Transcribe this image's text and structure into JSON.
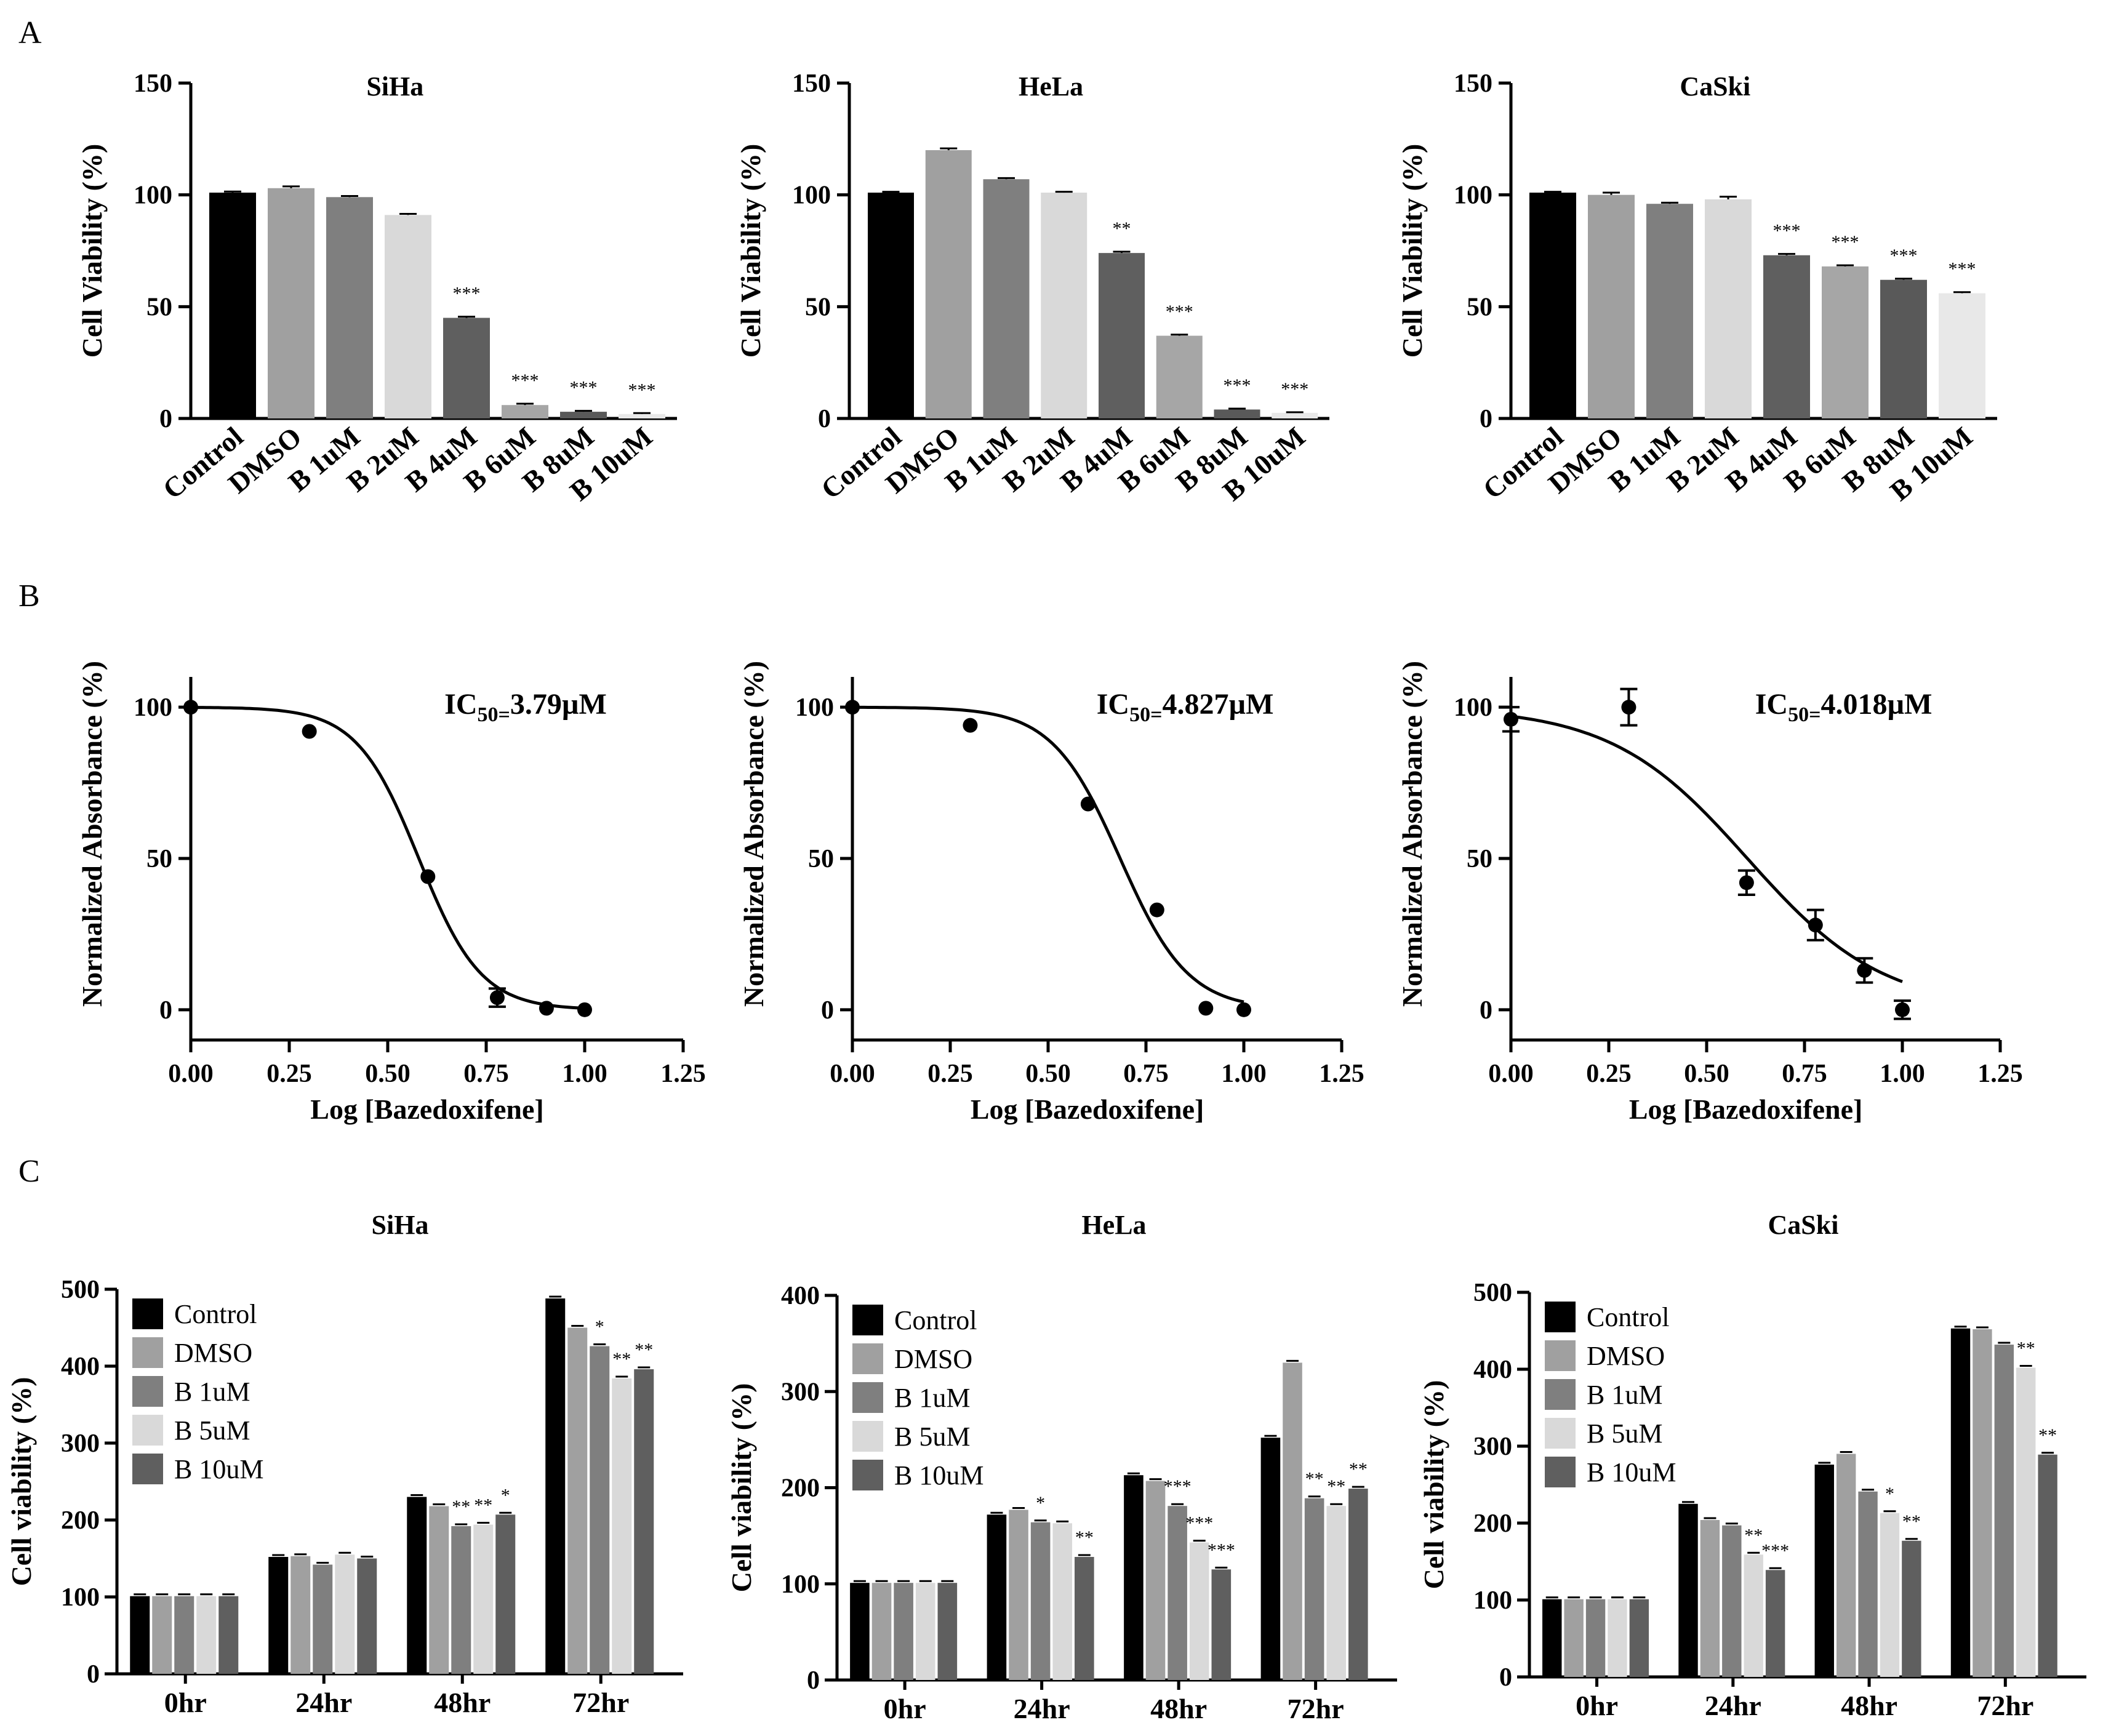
{
  "panels": {
    "A": "A",
    "B": "B",
    "C": "C"
  },
  "colors": {
    "control": "#000000",
    "dmso": "#a0a0a0",
    "b1": "#7f7f7f",
    "b2": "#d9d9d9",
    "b4": "#5f5f5f",
    "b6": "#a6a6a6",
    "b8": "#595959",
    "b10": "#e8e8e8",
    "timecourse": [
      "#000000",
      "#a0a0a0",
      "#7f7f7f",
      "#d9d9d9",
      "#5f5f5f"
    ]
  },
  "chart_data": [
    {
      "id": "A1",
      "type": "bar",
      "title": "SiHa",
      "xlabel": "",
      "ylabel": "Cell Viability (%)",
      "ylim": [
        0,
        150
      ],
      "yticks": [
        0,
        50,
        100,
        150
      ],
      "categories": [
        "Control",
        "DMSO",
        "B 1uM",
        "B 2uM",
        "B 4uM",
        "B 6uM",
        "B 8uM",
        "B 10uM"
      ],
      "values": [
        101,
        103,
        99,
        91,
        45,
        6,
        3,
        2
      ],
      "errors": [
        0.5,
        0.8,
        0.5,
        0.5,
        0.5,
        0.6,
        0.4,
        0.4
      ],
      "significance": [
        "",
        "",
        "",
        "",
        "***",
        "***",
        "***",
        "***"
      ]
    },
    {
      "id": "A2",
      "type": "bar",
      "title": "HeLa",
      "xlabel": "",
      "ylabel": "Cell Viability (%)",
      "ylim": [
        0,
        150
      ],
      "yticks": [
        0,
        50,
        100,
        150
      ],
      "categories": [
        "Control",
        "DMSO",
        "B 1uM",
        "B 2uM",
        "B 4uM",
        "B 6uM",
        "B 8uM",
        "B 10uM"
      ],
      "values": [
        101,
        120,
        107,
        101,
        74,
        37,
        4,
        2.5
      ],
      "errors": [
        0.4,
        0.8,
        0.5,
        0.4,
        0.6,
        0.5,
        0.4,
        0.3
      ],
      "significance": [
        "",
        "",
        "",
        "",
        "**",
        "***",
        "***",
        "***"
      ]
    },
    {
      "id": "A3",
      "type": "bar",
      "title": "CaSki",
      "xlabel": "",
      "ylabel": "Cell Viability (%)",
      "ylim": [
        0,
        150
      ],
      "yticks": [
        0,
        50,
        100,
        150
      ],
      "categories": [
        "Control",
        "DMSO",
        "B 1uM",
        "B 2uM",
        "B 4uM",
        "B 6uM",
        "B 8uM",
        "B 10uM"
      ],
      "values": [
        101,
        100,
        96,
        98,
        73,
        68,
        62,
        56
      ],
      "errors": [
        0.4,
        1.0,
        0.5,
        1.2,
        0.6,
        0.5,
        0.5,
        0.5
      ],
      "significance": [
        "",
        "",
        "",
        "",
        "***",
        "***",
        "***",
        "***"
      ]
    },
    {
      "id": "B1",
      "type": "scatter",
      "title": "",
      "annotation": {
        "prefix": "IC",
        "sub": "50=",
        "value": "3.79µM"
      },
      "xlabel": "Log [Bazedoxifene]",
      "ylabel": "Normalized Absorbance (%)",
      "xlim": [
        0,
        1.25
      ],
      "ylim": [
        -10,
        110
      ],
      "xticks": [
        "0.00",
        "0.25",
        "0.50",
        "0.75",
        "1.00",
        "1.25"
      ],
      "yticks": [
        0,
        50,
        100
      ],
      "x": [
        0.0,
        0.301,
        0.602,
        0.778,
        0.903,
        1.0
      ],
      "y": [
        100,
        92,
        44,
        4,
        0.5,
        0
      ],
      "errors": [
        0,
        0,
        0,
        3,
        0,
        0
      ],
      "fit": {
        "top": 100,
        "bottom": 0,
        "logIC50": 0.579,
        "hill": 5.5
      }
    },
    {
      "id": "B2",
      "type": "scatter",
      "title": "",
      "annotation": {
        "prefix": "IC",
        "sub": "50=",
        "value": "4.827µM"
      },
      "xlabel": "Log [Bazedoxifene]",
      "ylabel": "Normalized Absorbance (%)",
      "xlim": [
        0,
        1.25
      ],
      "ylim": [
        -10,
        110
      ],
      "xticks": [
        "0.00",
        "0.25",
        "0.50",
        "0.75",
        "1.00",
        "1.25"
      ],
      "yticks": [
        0,
        50,
        100
      ],
      "x": [
        0.0,
        0.301,
        0.602,
        0.778,
        0.903,
        1.0
      ],
      "y": [
        100,
        94,
        68,
        33,
        0.5,
        0
      ],
      "errors": [
        0,
        0,
        0,
        0,
        0,
        0
      ],
      "fit": {
        "top": 100,
        "bottom": 0,
        "logIC50": 0.684,
        "hill": 5.0
      }
    },
    {
      "id": "B3",
      "type": "scatter",
      "title": "",
      "annotation": {
        "prefix": "IC",
        "sub": "50=",
        "value": "4.018µM"
      },
      "xlabel": "Log [Bazedoxifene]",
      "ylabel": "Normalized Absorbance (%)",
      "xlim": [
        0,
        1.25
      ],
      "ylim": [
        -10,
        110
      ],
      "xticks": [
        "0.00",
        "0.25",
        "0.50",
        "0.75",
        "1.00",
        "1.25"
      ],
      "yticks": [
        0,
        50,
        100
      ],
      "x": [
        0.0,
        0.301,
        0.602,
        0.778,
        0.903,
        1.0
      ],
      "y": [
        96,
        100,
        42,
        28,
        13,
        0
      ],
      "errors": [
        4,
        6,
        4,
        5,
        4,
        3
      ],
      "fit": {
        "top": 100,
        "bottom": 0,
        "logIC50": 0.604,
        "hill": 2.5
      }
    },
    {
      "id": "C1",
      "type": "bar",
      "title": "SiHa",
      "xlabel": "",
      "ylabel": "Cell viability (%)",
      "ylim": [
        0,
        500
      ],
      "yticks": [
        0,
        100,
        200,
        300,
        400,
        500
      ],
      "categories": [
        "0hr",
        "24hr",
        "48hr",
        "72hr"
      ],
      "legend": [
        "Control",
        "DMSO",
        "B 1uM",
        "B 5uM",
        "B 10uM"
      ],
      "series": [
        {
          "name": "Control",
          "values": [
            101,
            152,
            230,
            488
          ],
          "sig": [
            "",
            "",
            "",
            ""
          ]
        },
        {
          "name": "DMSO",
          "values": [
            101,
            153,
            218,
            450
          ],
          "sig": [
            "",
            "",
            "",
            ""
          ]
        },
        {
          "name": "B 1uM",
          "values": [
            101,
            142,
            192,
            426
          ],
          "sig": [
            "",
            "",
            "**",
            "*"
          ]
        },
        {
          "name": "B 5uM",
          "values": [
            101,
            155,
            194,
            384
          ],
          "sig": [
            "",
            "",
            "**",
            "**"
          ]
        },
        {
          "name": "B 10uM",
          "values": [
            101,
            150,
            207,
            396
          ],
          "sig": [
            "",
            "",
            "*",
            "**"
          ]
        }
      ]
    },
    {
      "id": "C2",
      "type": "bar",
      "title": "HeLa",
      "xlabel": "",
      "ylabel": "Cell viability (%)",
      "ylim": [
        0,
        400
      ],
      "yticks": [
        0,
        100,
        200,
        300,
        400
      ],
      "categories": [
        "0hr",
        "24hr",
        "48hr",
        "72hr"
      ],
      "legend": [
        "Control",
        "DMSO",
        "B 1uM",
        "B 5uM",
        "B 10uM"
      ],
      "series": [
        {
          "name": "Control",
          "values": [
            101,
            172,
            213,
            252
          ],
          "sig": [
            "",
            "",
            "",
            ""
          ]
        },
        {
          "name": "DMSO",
          "values": [
            101,
            177,
            207,
            330
          ],
          "sig": [
            "",
            "",
            "",
            ""
          ]
        },
        {
          "name": "B 1uM",
          "values": [
            101,
            164,
            181,
            189
          ],
          "sig": [
            "",
            "*",
            "***",
            "**"
          ]
        },
        {
          "name": "B 5uM",
          "values": [
            101,
            163,
            143,
            181
          ],
          "sig": [
            "",
            "",
            "***",
            "**"
          ]
        },
        {
          "name": "B 10uM",
          "values": [
            101,
            128,
            115,
            199
          ],
          "sig": [
            "",
            "**",
            "***",
            "**"
          ]
        }
      ]
    },
    {
      "id": "C3",
      "type": "bar",
      "title": "CaSki",
      "xlabel": "",
      "ylabel": "Cell viability (%)",
      "ylim": [
        0,
        500
      ],
      "yticks": [
        0,
        100,
        200,
        300,
        400,
        500
      ],
      "categories": [
        "0hr",
        "24hr",
        "48hr",
        "72hr"
      ],
      "legend": [
        "Control",
        "DMSO",
        "B 1uM",
        "B 5uM",
        "B 10uM"
      ],
      "series": [
        {
          "name": "Control",
          "values": [
            101,
            225,
            276,
            453
          ],
          "sig": [
            "",
            "",
            "",
            ""
          ]
        },
        {
          "name": "DMSO",
          "values": [
            101,
            204,
            290,
            452
          ],
          "sig": [
            "",
            "",
            "",
            ""
          ]
        },
        {
          "name": "B 1uM",
          "values": [
            101,
            197,
            241,
            432
          ],
          "sig": [
            "",
            "",
            "",
            ""
          ]
        },
        {
          "name": "B 5uM",
          "values": [
            101,
            159,
            213,
            402
          ],
          "sig": [
            "",
            "**",
            "*",
            "**"
          ]
        },
        {
          "name": "B 10uM",
          "values": [
            101,
            139,
            177,
            289
          ],
          "sig": [
            "",
            "***",
            "**",
            "**"
          ]
        }
      ]
    }
  ]
}
